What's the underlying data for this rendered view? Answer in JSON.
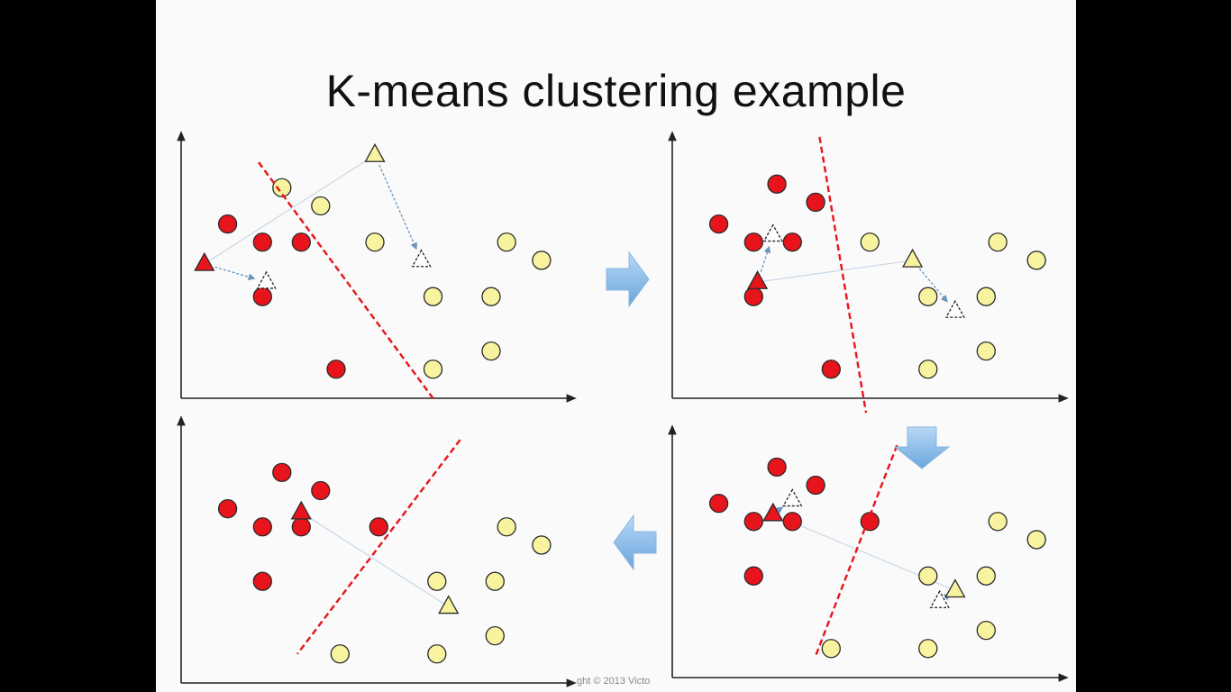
{
  "slide": {
    "title": "K-means clustering example",
    "copyright": "ght © 2013 Victo"
  },
  "colors": {
    "cluster_a": "#e8141c",
    "cluster_b": "#f7f39f",
    "point_stroke": "#2a2a2a",
    "boundary": "#e8141c",
    "arrow_fill": "#8fc0ec",
    "centroid_link": "#c8d8e8",
    "move_arrow": "#6a94bd"
  },
  "chart_data": [
    {
      "type": "scatter",
      "panel": "top-left",
      "title": "",
      "xlabel": "",
      "ylabel": "",
      "xlim": [
        0,
        10
      ],
      "ylim": [
        0,
        7
      ],
      "series": [
        {
          "cluster": "red",
          "points": [
            [
              1.2,
              4.8
            ],
            [
              2.1,
              4.3
            ],
            [
              3.1,
              4.3
            ],
            [
              2.1,
              2.8
            ],
            [
              4.0,
              0.8
            ]
          ]
        },
        {
          "cluster": "yellow",
          "points": [
            [
              2.6,
              5.8
            ],
            [
              3.6,
              5.3
            ],
            [
              5.0,
              4.3
            ],
            [
              6.5,
              2.8
            ],
            [
              8.4,
              4.3
            ],
            [
              9.3,
              3.8
            ],
            [
              8.0,
              2.8
            ],
            [
              8.0,
              1.3
            ],
            [
              6.5,
              0.8
            ]
          ]
        }
      ],
      "centroids_old": [
        {
          "cluster": "red",
          "pos": [
            0.6,
            3.7
          ]
        },
        {
          "cluster": "yellow",
          "pos": [
            5.0,
            6.7
          ]
        }
      ],
      "centroids_new": [
        {
          "cluster": "red",
          "pos": [
            2.2,
            3.2
          ]
        },
        {
          "cluster": "yellow",
          "pos": [
            6.2,
            3.8
          ]
        }
      ],
      "boundary": [
        [
          2.0,
          6.5
        ],
        [
          6.5,
          0.0
        ]
      ]
    },
    {
      "type": "scatter",
      "panel": "top-right",
      "title": "",
      "xlabel": "",
      "ylabel": "",
      "xlim": [
        0,
        10
      ],
      "ylim": [
        0,
        7
      ],
      "series": [
        {
          "cluster": "red",
          "points": [
            [
              2.7,
              5.9
            ],
            [
              3.7,
              5.4
            ],
            [
              1.2,
              4.8
            ],
            [
              2.1,
              4.3
            ],
            [
              3.1,
              4.3
            ],
            [
              2.1,
              2.8
            ],
            [
              4.1,
              0.8
            ]
          ]
        },
        {
          "cluster": "yellow",
          "points": [
            [
              5.1,
              4.3
            ],
            [
              8.4,
              4.3
            ],
            [
              9.4,
              3.8
            ],
            [
              6.6,
              2.8
            ],
            [
              8.1,
              2.8
            ],
            [
              8.1,
              1.3
            ],
            [
              6.6,
              0.8
            ]
          ]
        }
      ],
      "centroids_old": [
        {
          "cluster": "red",
          "pos": [
            2.2,
            3.2
          ]
        },
        {
          "cluster": "yellow",
          "pos": [
            6.2,
            3.8
          ]
        }
      ],
      "centroids_new": [
        {
          "cluster": "red",
          "pos": [
            2.6,
            4.5
          ]
        },
        {
          "cluster": "yellow",
          "pos": [
            7.3,
            2.4
          ]
        }
      ],
      "boundary": [
        [
          3.8,
          7.2
        ],
        [
          5.0,
          -0.4
        ]
      ]
    },
    {
      "type": "scatter",
      "panel": "bottom-right",
      "title": "",
      "xlabel": "",
      "ylabel": "",
      "xlim": [
        0,
        10
      ],
      "ylim": [
        0,
        7
      ],
      "series": [
        {
          "cluster": "red",
          "points": [
            [
              2.7,
              5.8
            ],
            [
              3.7,
              5.3
            ],
            [
              1.2,
              4.8
            ],
            [
              2.1,
              4.3
            ],
            [
              3.1,
              4.3
            ],
            [
              5.1,
              4.3
            ],
            [
              2.1,
              2.8
            ]
          ]
        },
        {
          "cluster": "yellow",
          "points": [
            [
              8.4,
              4.3
            ],
            [
              9.4,
              3.8
            ],
            [
              6.6,
              2.8
            ],
            [
              8.1,
              2.8
            ],
            [
              4.1,
              0.8
            ],
            [
              6.6,
              0.8
            ],
            [
              8.1,
              1.3
            ]
          ]
        }
      ],
      "centroids_old": [
        {
          "cluster": "red",
          "pos": [
            2.6,
            4.5
          ]
        },
        {
          "cluster": "yellow",
          "pos": [
            7.3,
            2.4
          ]
        }
      ],
      "centroids_new": [
        {
          "cluster": "red",
          "pos": [
            3.1,
            4.9
          ]
        },
        {
          "cluster": "yellow",
          "pos": [
            6.9,
            2.1
          ]
        }
      ],
      "boundary": [
        [
          5.8,
          6.4
        ],
        [
          3.7,
          0.6
        ]
      ]
    },
    {
      "type": "scatter",
      "panel": "bottom-left",
      "title": "",
      "xlabel": "",
      "ylabel": "",
      "xlim": [
        0,
        10
      ],
      "ylim": [
        0,
        7
      ],
      "series": [
        {
          "cluster": "red",
          "points": [
            [
              2.6,
              5.8
            ],
            [
              3.6,
              5.3
            ],
            [
              1.2,
              4.8
            ],
            [
              2.1,
              4.3
            ],
            [
              3.1,
              4.3
            ],
            [
              5.1,
              4.3
            ],
            [
              2.1,
              2.8
            ]
          ]
        },
        {
          "cluster": "yellow",
          "points": [
            [
              8.4,
              4.3
            ],
            [
              9.3,
              3.8
            ],
            [
              6.6,
              2.8
            ],
            [
              8.1,
              2.8
            ],
            [
              8.1,
              1.3
            ],
            [
              4.1,
              0.8
            ],
            [
              6.6,
              0.8
            ]
          ]
        }
      ],
      "centroids": [
        {
          "cluster": "red",
          "pos": [
            3.1,
            4.7
          ]
        },
        {
          "cluster": "yellow",
          "pos": [
            6.9,
            2.1
          ]
        }
      ],
      "boundary": [
        [
          7.2,
          6.7
        ],
        [
          3.0,
          0.8
        ]
      ]
    }
  ],
  "flow_arrows": [
    {
      "from": "top-left",
      "to": "top-right",
      "direction": "right"
    },
    {
      "from": "top-right",
      "to": "bottom-right",
      "direction": "down"
    },
    {
      "from": "bottom-right",
      "to": "bottom-left",
      "direction": "left"
    }
  ]
}
